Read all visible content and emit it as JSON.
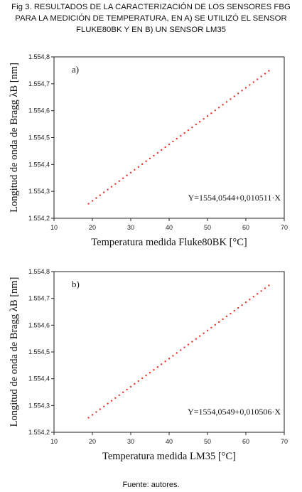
{
  "figure": {
    "caption_lines": [
      "Fig 3. RESULTADOS DE LA CARACTERIZACIÓN DE LOS SENSORES FBG",
      "PARA LA MEDICIÓN DE TEMPERATURA, EN A) SE UTILIZÓ EL SENSOR",
      "FLUKE80BK Y EN B) UN SENSOR LM35"
    ],
    "source": "Fuente: autores.",
    "marker_color": "#e8322b"
  },
  "chart_data": [
    {
      "type": "scatter",
      "panel_label": "a)",
      "xlabel": "Temperatura medida Fluke80BK [°C]",
      "ylabel": "Longitud de onda de Bragg λB [nm]",
      "xlim": [
        10,
        70
      ],
      "ylim": [
        1554.2,
        1554.8
      ],
      "xticks": [
        "10",
        "20",
        "30",
        "40",
        "50",
        "60",
        "70"
      ],
      "yticks": [
        "1.554,2",
        "1.554,3",
        "1.554,4",
        "1.554,5",
        "1.554,6",
        "1.554,7",
        "1.554,8"
      ],
      "annotation": "Y=1554,0544+0,010511·X",
      "grid": false,
      "series": [
        {
          "x_start": 19,
          "x_end": 66,
          "x_step": 1,
          "intercept": 1554.0544,
          "slope": 0.010511
        }
      ]
    },
    {
      "type": "scatter",
      "panel_label": "b)",
      "xlabel": "Temperatura medida LM35 [°C]",
      "ylabel": "Longitud de onda de Bragg λB [nm]",
      "xlim": [
        10,
        70
      ],
      "ylim": [
        1554.2,
        1554.8
      ],
      "xticks": [
        "10",
        "20",
        "30",
        "40",
        "50",
        "60",
        "70"
      ],
      "yticks": [
        "1.554,2",
        "1.554,3",
        "1.554,4",
        "1.554,5",
        "1.554,6",
        "1.554,7",
        "1.554,8"
      ],
      "annotation": "Y=1554,0549+0,010506·X",
      "grid": false,
      "series": [
        {
          "x_start": 19,
          "x_end": 66,
          "x_step": 1,
          "intercept": 1554.0549,
          "slope": 0.010506
        }
      ]
    }
  ]
}
